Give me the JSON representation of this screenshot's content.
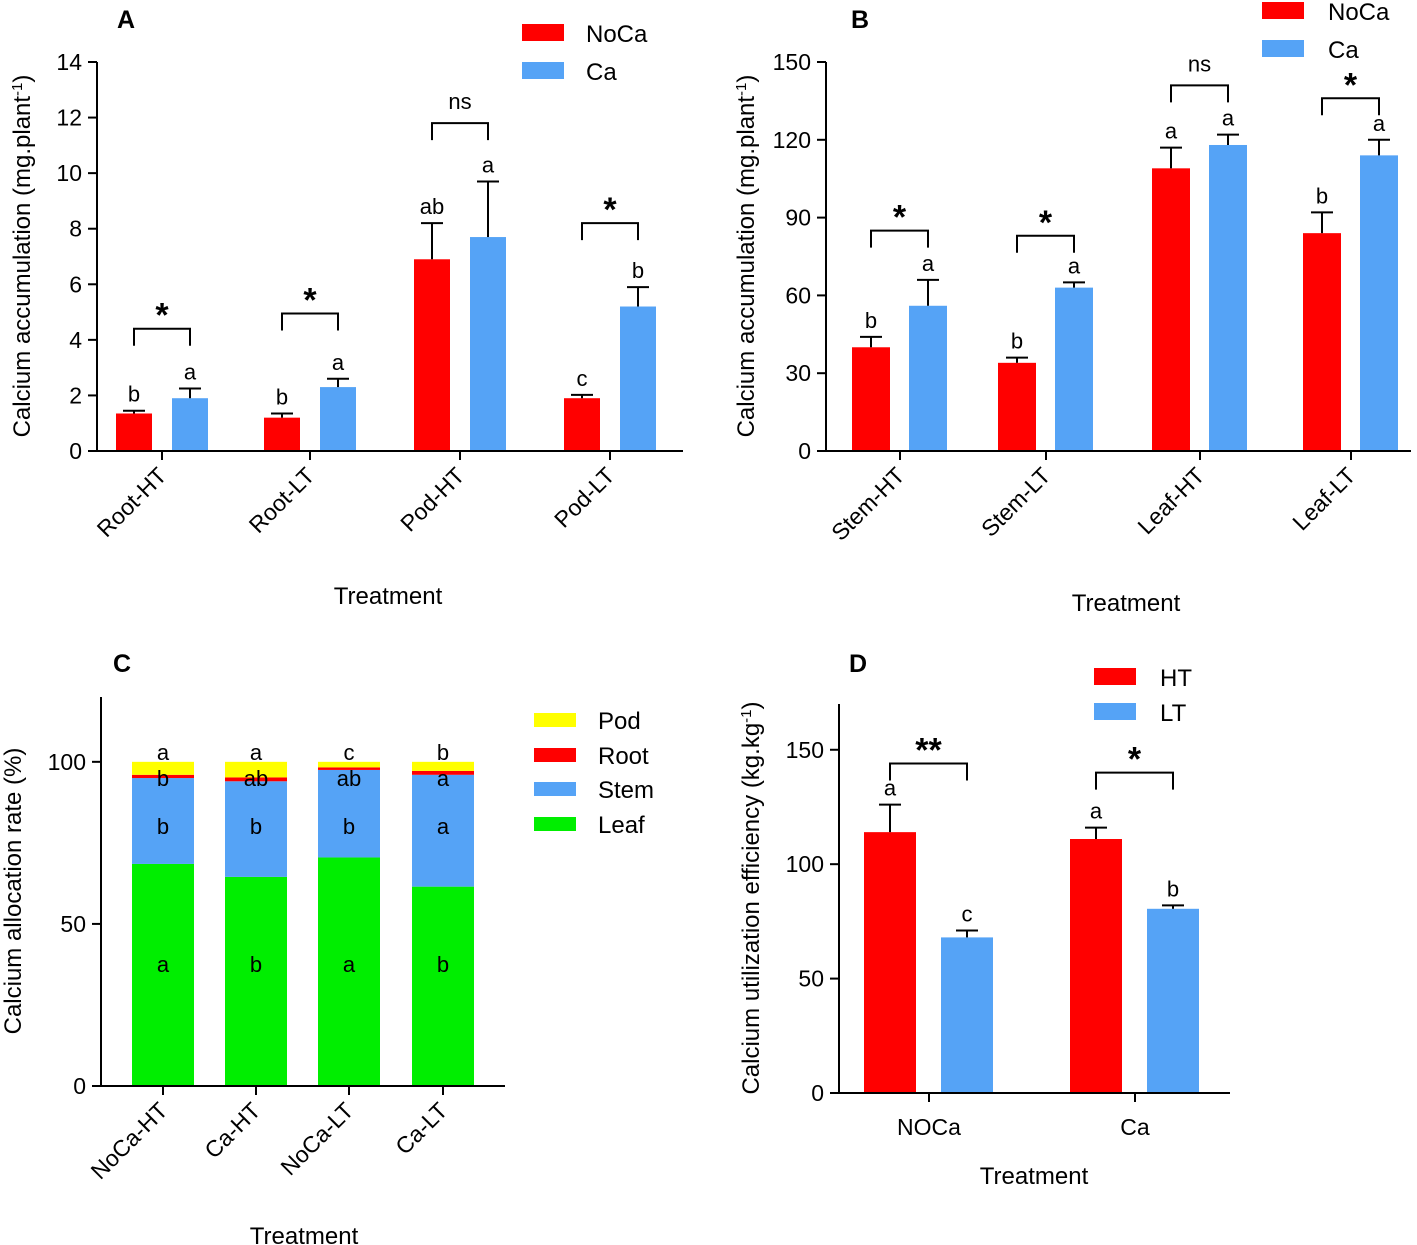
{
  "figure": {
    "colors": {
      "NoCa": "#ff0000",
      "Ca": "#55a3f6",
      "HT": "#ff0000",
      "LT": "#55a3f6",
      "Pod": "#ffff00",
      "Root": "#ff0000",
      "Stem": "#55a3f6",
      "Leaf": "#00ee00"
    }
  },
  "chart_data": [
    {
      "id": "A",
      "panel_label": "A",
      "type": "bar",
      "xlabel": "Treatment",
      "ylabel": "Calcium accumulation (mg.plant",
      "ylabel_sup": "-1",
      "ylabel_close": ")",
      "ylim": [
        0,
        14
      ],
      "yticks": [
        0,
        2,
        4,
        6,
        8,
        10,
        12,
        14
      ],
      "categories": [
        "Root-HT",
        "Root-LT",
        "Pod-HT",
        "Pod-LT"
      ],
      "series": [
        {
          "name": "NoCa",
          "values": [
            1.35,
            1.2,
            6.9,
            1.9
          ],
          "errors": [
            0.1,
            0.15,
            1.3,
            0.12
          ],
          "letters": [
            "b",
            "b",
            "ab",
            "c"
          ]
        },
        {
          "name": "Ca",
          "values": [
            1.9,
            2.3,
            7.7,
            5.2
          ],
          "errors": [
            0.35,
            0.3,
            2.0,
            0.7
          ],
          "letters": [
            "a",
            "a",
            "a",
            "b"
          ]
        }
      ],
      "significance": [
        "*",
        "*",
        "ns",
        "*"
      ],
      "bracket_levels": [
        4.4,
        4.95,
        11.8,
        8.2
      ],
      "legend": [
        "NoCa",
        "Ca"
      ]
    },
    {
      "id": "B",
      "panel_label": "B",
      "type": "bar",
      "xlabel": "Treatment",
      "ylabel": "Calcium accumulation (mg.plant",
      "ylabel_sup": "-1",
      "ylabel_close": ")",
      "ylim": [
        0,
        150
      ],
      "yticks": [
        0,
        30,
        60,
        90,
        120,
        150
      ],
      "categories": [
        "Stem-HT",
        "Stem-LT",
        "Leaf-HT",
        "Leaf-LT"
      ],
      "series": [
        {
          "name": "NoCa",
          "values": [
            40,
            34,
            109,
            84
          ],
          "errors": [
            4,
            2,
            8,
            8
          ],
          "letters": [
            "b",
            "b",
            "a",
            "b"
          ]
        },
        {
          "name": "Ca",
          "values": [
            56,
            63,
            118,
            114
          ],
          "errors": [
            10,
            2,
            4,
            6
          ],
          "letters": [
            "a",
            "a",
            "a",
            "a"
          ]
        }
      ],
      "significance": [
        "*",
        "*",
        "ns",
        "*"
      ],
      "bracket_levels": [
        85,
        83,
        141,
        136
      ],
      "legend": [
        "NoCa",
        "Ca"
      ]
    },
    {
      "id": "C",
      "panel_label": "C",
      "type": "bar",
      "stacked": true,
      "xlabel": "Treatment",
      "ylabel": "Calcium allocation rate (%)",
      "ylim": [
        0,
        120
      ],
      "yticks": [
        0,
        50,
        100
      ],
      "categories": [
        "NoCa-HT",
        "Ca-HT",
        "NoCa-LT",
        "Ca-LT"
      ],
      "series": [
        {
          "name": "Leaf",
          "values": [
            68.5,
            64.5,
            70.5,
            61.5
          ],
          "letters": [
            "a",
            "b",
            "a",
            "b"
          ]
        },
        {
          "name": "Stem",
          "values": [
            26.5,
            29.5,
            27,
            34.5
          ],
          "letters": [
            "b",
            "b",
            "b",
            "a"
          ]
        },
        {
          "name": "Root",
          "values": [
            1,
            1.2,
            0.8,
            1.2
          ],
          "letters": [
            "b",
            "ab",
            "ab",
            "a"
          ]
        },
        {
          "name": "Pod",
          "values": [
            4,
            4.8,
            1.7,
            2.8
          ],
          "letters": [
            "a",
            "a",
            "c",
            "b"
          ]
        }
      ],
      "legend": [
        "Pod",
        "Root",
        "Stem",
        "Leaf"
      ]
    },
    {
      "id": "D",
      "panel_label": "D",
      "type": "bar",
      "xlabel": "Treatment",
      "ylabel": "Calcium utilization efficiency (kg.kg",
      "ylabel_sup": "-1",
      "ylabel_close": ")",
      "ylim": [
        0,
        170
      ],
      "yticks": [
        0,
        50,
        100,
        150
      ],
      "categories": [
        "NOCa",
        "Ca"
      ],
      "series": [
        {
          "name": "HT",
          "values": [
            114,
            111
          ],
          "errors": [
            12,
            5
          ],
          "letters": [
            "a",
            "a"
          ]
        },
        {
          "name": "LT",
          "values": [
            68,
            80.5
          ],
          "errors": [
            3,
            1.5
          ],
          "letters": [
            "c",
            "b"
          ]
        }
      ],
      "significance": [
        "**",
        "*"
      ],
      "bracket_levels": [
        144,
        140
      ],
      "legend": [
        "HT",
        "LT"
      ]
    }
  ]
}
